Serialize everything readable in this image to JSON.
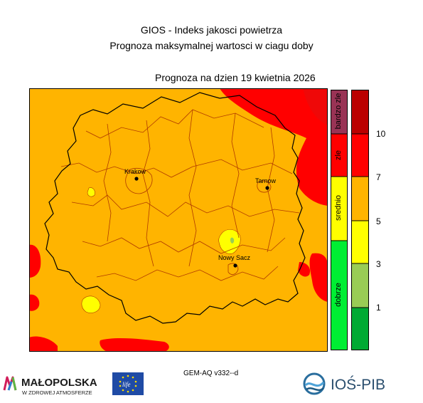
{
  "header": {
    "title": "GIOS - Indeks jakosci powietrza",
    "subtitle": "Prognoza maksymalnej wartosci w ciagu doby",
    "forecast_date": "Prognoza na dzien  19 kwietnia 2026"
  },
  "map": {
    "cities": [
      "Krakow",
      "Tarnow",
      "Nowy Sacz"
    ],
    "colors": {
      "bardzo_zle": "#b30000",
      "zle": "#ff0000",
      "srednio": "#ffb400",
      "srednio_low": "#ffff00",
      "dobrze_high": "#99cc55",
      "dobrze": "#00cc33",
      "border": "#000000",
      "district_border": "#b03a00"
    }
  },
  "legend": {
    "categories": [
      "bardzo zle",
      "zle",
      "srednio",
      "dobrze"
    ],
    "ticks": [
      "10",
      "7",
      "5",
      "3",
      "1"
    ]
  },
  "footer": {
    "model": "GEM-AQ v332--d",
    "logo_left_main": "MAŁOPOLSKA",
    "logo_left_sub": "W ZDROWEJ ATMOSFERZE",
    "logo_right": "IOŚ-PIB",
    "eu_mark": "life"
  }
}
